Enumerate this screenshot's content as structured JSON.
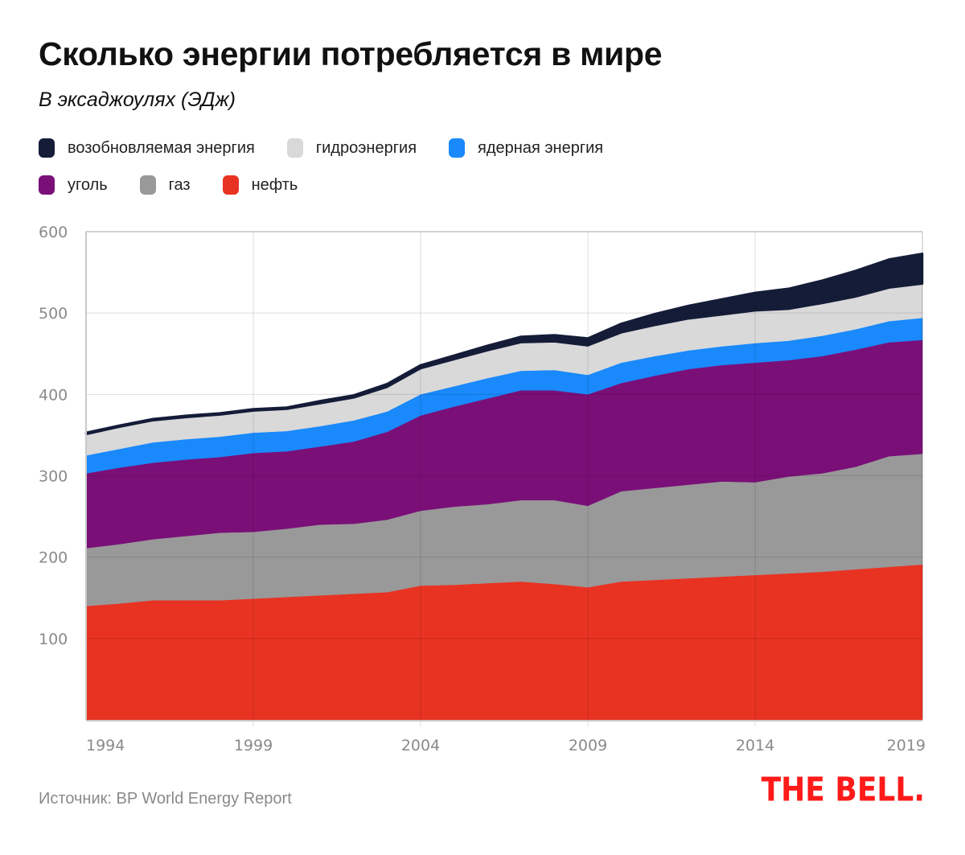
{
  "header": {
    "title": "Сколько энергии потребляется в мире",
    "subtitle": "В эксаджоулях (ЭДж)"
  },
  "legend": [
    {
      "key": "renewables",
      "label": "возобновляемая энергия",
      "color": "#151c38"
    },
    {
      "key": "hydro",
      "label": "гидроэнергия",
      "color": "#d9d9d9"
    },
    {
      "key": "nuclear",
      "label": "ядерная энергия",
      "color": "#1989fb"
    },
    {
      "key": "coal",
      "label": "уголь",
      "color": "#7a0f78"
    },
    {
      "key": "gas",
      "label": "газ",
      "color": "#999999"
    },
    {
      "key": "oil",
      "label": "нефть",
      "color": "#e83323"
    }
  ],
  "footer": {
    "source": "Источник: BP World Energy Report",
    "logo": "THE BELL."
  },
  "chart_data": {
    "type": "area",
    "stacked": true,
    "title": "Сколько энергии потребляется в мире",
    "subtitle": "В эксаджоулях (ЭДж)",
    "xlabel": "",
    "ylabel": "",
    "x": [
      1994,
      1995,
      1996,
      1997,
      1998,
      1999,
      2000,
      2001,
      2002,
      2003,
      2004,
      2005,
      2006,
      2007,
      2008,
      2009,
      2010,
      2011,
      2012,
      2013,
      2014,
      2015,
      2016,
      2017,
      2018,
      2019
    ],
    "x_ticks": [
      "1994",
      "1999",
      "2004",
      "2009",
      "2014",
      "2019"
    ],
    "y_ticks": [
      "100",
      "200",
      "300",
      "400",
      "500",
      "600"
    ],
    "ylim": [
      0,
      600
    ],
    "grid": true,
    "legend_position": "top-left",
    "series": [
      {
        "name": "нефть",
        "color": "#e83323",
        "values": [
          140,
          143,
          147,
          147,
          147,
          149,
          151,
          153,
          155,
          157,
          165,
          166,
          168,
          170,
          167,
          163,
          170,
          172,
          174,
          176,
          178,
          180,
          182,
          185,
          188,
          191
        ]
      },
      {
        "name": "газ",
        "color": "#999999",
        "values": [
          71,
          73,
          75,
          79,
          83,
          82,
          84,
          87,
          86,
          89,
          92,
          96,
          97,
          100,
          103,
          100,
          111,
          113,
          115,
          117,
          114,
          119,
          121,
          126,
          136,
          136
        ]
      },
      {
        "name": "уголь",
        "color": "#7a0f78",
        "values": [
          92,
          94,
          94,
          94,
          93,
          97,
          95,
          96,
          101,
          108,
          117,
          123,
          130,
          135,
          135,
          137,
          133,
          138,
          142,
          143,
          147,
          143,
          144,
          144,
          140,
          140
        ]
      },
      {
        "name": "ядерная энергия",
        "color": "#1989fb",
        "values": [
          22,
          23,
          25,
          25,
          25,
          25,
          25,
          25,
          26,
          25,
          26,
          25,
          25,
          24,
          25,
          24,
          25,
          24,
          23,
          23,
          24,
          24,
          25,
          25,
          26,
          27
        ]
      },
      {
        "name": "гидроэнергия",
        "color": "#d9d9d9",
        "values": [
          26,
          27,
          27,
          27,
          27,
          27,
          27,
          28,
          28,
          30,
          32,
          33,
          34,
          35,
          35,
          36,
          37,
          38,
          39,
          39,
          40,
          39,
          40,
          40,
          41,
          42
        ]
      },
      {
        "name": "возобновляемая энергия",
        "color": "#151c38",
        "values": [
          2,
          2,
          2,
          2,
          2,
          2,
          2,
          3,
          3,
          4,
          4,
          5,
          6,
          7,
          8,
          9,
          11,
          14,
          16,
          19,
          22,
          25,
          28,
          32,
          35,
          37
        ]
      }
    ]
  }
}
